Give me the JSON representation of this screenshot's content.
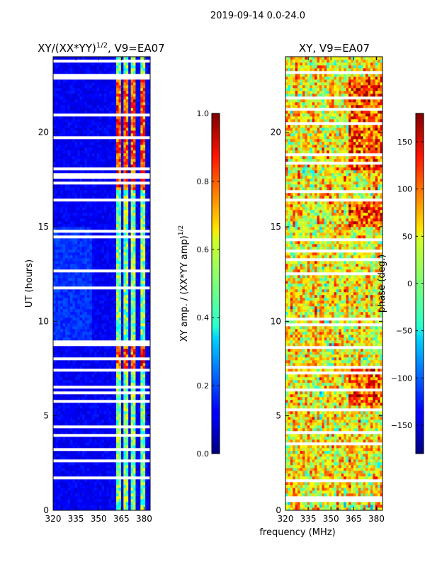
{
  "suptitle": "2019-09-14 0.0-24.0",
  "chart_data": [
    {
      "type": "heatmap",
      "title_main": "XY/(XX*YY)",
      "title_sup": "1/2",
      "title_suffix": ", V9=EA07",
      "xlabel": "",
      "ylabel": "UT (hours)",
      "xlim": [
        320,
        384
      ],
      "ylim": [
        0,
        24
      ],
      "xticks": [
        320,
        335,
        350,
        365,
        380
      ],
      "yticks": [
        0,
        5,
        10,
        15,
        20
      ],
      "features": {
        "background": "low amplitude (~0.1)",
        "bright_channel_bands_MHz": [
          [
            361,
            365
          ],
          [
            367,
            369
          ],
          [
            371.5,
            374.5
          ],
          [
            377,
            380
          ]
        ],
        "blank_time_ranges_hours": [
          [
            8.7,
            9.05
          ]
        ]
      },
      "colorbar": {
        "label": "XY amp. / (XX*YY amp)",
        "label_sup": "1/2",
        "range": [
          0.0,
          1.0
        ],
        "ticks": [
          "0.0",
          "0.2",
          "0.4",
          "0.6",
          "0.8",
          "1.0"
        ],
        "tick_values": [
          0.0,
          0.2,
          0.4,
          0.6,
          0.8,
          1.0
        ],
        "colormap": "jet"
      }
    },
    {
      "type": "heatmap",
      "title": "XY, V9=EA07",
      "xlabel": "frequency (MHz)",
      "ylabel": "",
      "xlim": [
        320,
        384
      ],
      "ylim": [
        0,
        24
      ],
      "xticks": [
        320,
        335,
        350,
        365,
        380
      ],
      "yticks": [
        0,
        5,
        10,
        15,
        20
      ],
      "features": {
        "background": "phase values spanning full range",
        "blank_time_ranges_hours": []
      },
      "colorbar": {
        "label": "phase (deg.)",
        "range": [
          -180,
          180
        ],
        "ticks": [
          "150",
          "100",
          "50",
          "0",
          "−50",
          "−100",
          "−150"
        ],
        "tick_values": [
          150,
          100,
          50,
          0,
          -50,
          -100,
          -150
        ],
        "colormap": "jet"
      }
    }
  ]
}
